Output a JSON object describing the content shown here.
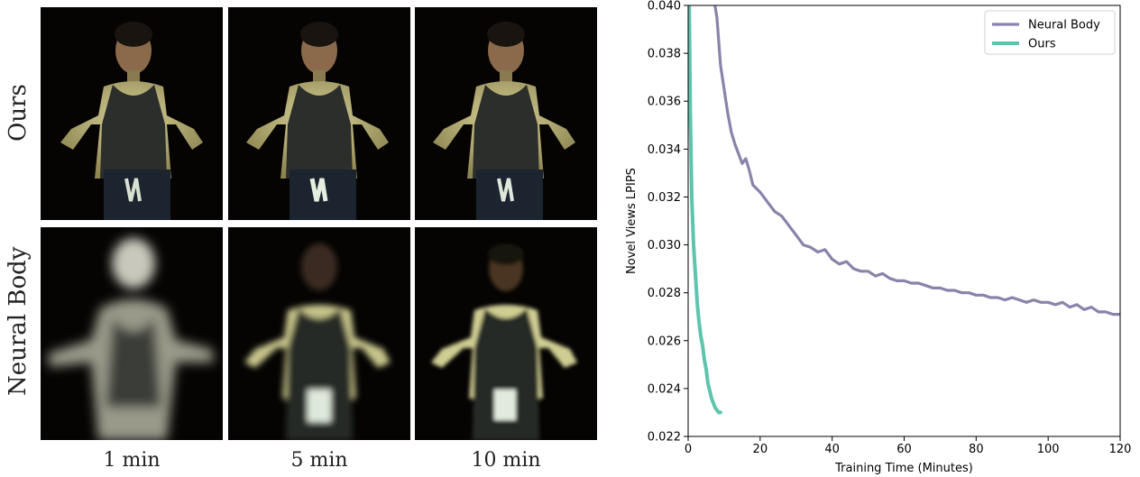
{
  "figure": {
    "row_labels": [
      "Ours",
      "Neural Body"
    ],
    "column_labels": [
      "1 min",
      "5 min",
      "10 min"
    ]
  },
  "chart_data": {
    "type": "line",
    "xlabel": "Training Time (Minutes)",
    "ylabel": "Novel Views LPIPS",
    "xlim": [
      0,
      120
    ],
    "ylim": [
      0.022,
      0.04
    ],
    "xticks": [
      "0",
      "20",
      "40",
      "60",
      "80",
      "100",
      "120"
    ],
    "yticks": [
      "0.022",
      "0.024",
      "0.026",
      "0.028",
      "0.030",
      "0.032",
      "0.034",
      "0.036",
      "0.038",
      "0.040"
    ],
    "grid": false,
    "legend": "top-right",
    "series": [
      {
        "name": "Neural Body",
        "color": "#8884aa",
        "x": [
          7,
          8,
          8.5,
          9,
          10,
          11,
          12,
          13,
          14,
          15,
          16,
          17,
          18,
          20,
          22,
          24,
          26,
          28,
          30,
          32,
          34,
          36,
          38,
          40,
          42,
          44,
          46,
          48,
          50,
          52,
          54,
          56,
          58,
          60,
          62,
          64,
          66,
          68,
          70,
          72,
          74,
          76,
          78,
          80,
          82,
          84,
          86,
          88,
          90,
          92,
          94,
          96,
          98,
          100,
          102,
          104,
          106,
          108,
          110,
          112,
          114,
          116,
          118,
          120
        ],
        "y": [
          0.0404,
          0.0395,
          0.0385,
          0.0375,
          0.0365,
          0.0355,
          0.0347,
          0.0342,
          0.0338,
          0.0334,
          0.0336,
          0.0331,
          0.0325,
          0.0322,
          0.0318,
          0.0314,
          0.0312,
          0.0308,
          0.0304,
          0.03,
          0.0299,
          0.0297,
          0.0298,
          0.0294,
          0.0292,
          0.0293,
          0.029,
          0.0289,
          0.0289,
          0.0287,
          0.0288,
          0.0286,
          0.0285,
          0.0285,
          0.0284,
          0.0284,
          0.0283,
          0.0282,
          0.0282,
          0.0281,
          0.0281,
          0.028,
          0.028,
          0.0279,
          0.0279,
          0.0278,
          0.0278,
          0.0277,
          0.0278,
          0.0277,
          0.0276,
          0.0277,
          0.0276,
          0.0276,
          0.0275,
          0.0276,
          0.0274,
          0.0275,
          0.0273,
          0.0274,
          0.0272,
          0.0272,
          0.0271,
          0.0271
        ]
      },
      {
        "name": "Ours",
        "color": "#5ec4ad",
        "x": [
          0.3,
          0.6,
          1,
          1.5,
          2,
          2.5,
          3,
          3.5,
          4,
          4.5,
          5,
          5.5,
          6,
          6.5,
          7,
          7.5,
          8,
          8.5,
          9
        ],
        "y": [
          0.04,
          0.0355,
          0.032,
          0.03,
          0.0288,
          0.0276,
          0.0268,
          0.0262,
          0.0258,
          0.0252,
          0.0248,
          0.0242,
          0.0239,
          0.0236,
          0.0234,
          0.0232,
          0.0231,
          0.023,
          0.023
        ]
      }
    ]
  }
}
